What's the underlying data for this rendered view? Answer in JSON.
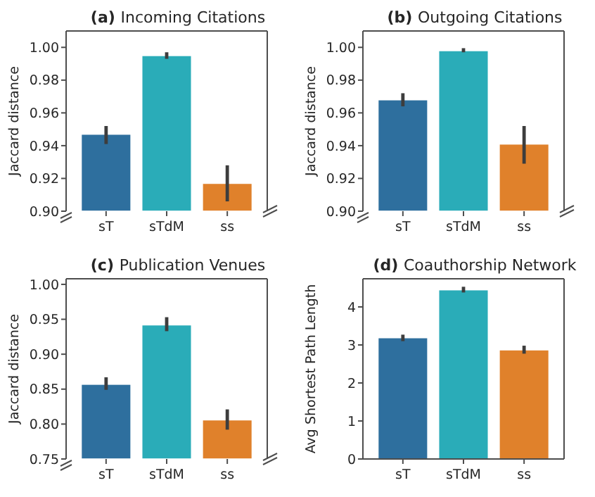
{
  "chart_data": [
    {
      "type": "bar",
      "title": "Incoming Citations",
      "annotations": [
        "(a)"
      ],
      "ylabel": "Jaccard distance",
      "categories": [
        "sT",
        "sTdM",
        "ss"
      ],
      "values": [
        0.947,
        0.995,
        0.917
      ],
      "colors": [
        "#2e6f9e",
        "#2aacb8",
        "#e0812b"
      ],
      "errors": [
        [
          0.941,
          0.952
        ],
        [
          0.993,
          0.997
        ],
        [
          0.906,
          0.928
        ]
      ],
      "ylim": [
        0.9,
        1.01
      ],
      "yticks": [
        {
          "value": 0.9,
          "label": "0.90"
        },
        0.92,
        0.94,
        0.96,
        0.98,
        {
          "value": 1.0,
          "label": "1.00"
        }
      ],
      "grid": false
    },
    {
      "type": "bar",
      "title": "Outgoing Citations",
      "annotations": [
        "(b)"
      ],
      "ylabel": "Jaccard distance",
      "categories": [
        "sT",
        "sTdM",
        "ss"
      ],
      "values": [
        0.968,
        0.998,
        0.941
      ],
      "colors": [
        "#2e6f9e",
        "#2aacb8",
        "#e0812b"
      ],
      "errors": [
        [
          0.964,
          0.972
        ],
        [
          0.997,
          0.9995
        ],
        [
          0.929,
          0.952
        ]
      ],
      "ylim": [
        0.9,
        1.01
      ],
      "yticks": [
        {
          "value": 0.9,
          "label": "0.90"
        },
        0.92,
        0.94,
        0.96,
        0.98,
        {
          "value": 1.0,
          "label": "1.00"
        }
      ],
      "grid": false
    },
    {
      "type": "bar",
      "title": "Publication Venues",
      "annotations": [
        "(c)"
      ],
      "ylabel": "Jaccard distance",
      "categories": [
        "sT",
        "sTdM",
        "ss"
      ],
      "values": [
        0.857,
        0.942,
        0.806
      ],
      "colors": [
        "#2e6f9e",
        "#2aacb8",
        "#e0812b"
      ],
      "errors": [
        [
          0.849,
          0.867
        ],
        [
          0.933,
          0.953
        ],
        [
          0.792,
          0.821
        ]
      ],
      "ylim": [
        0.75,
        1.008
      ],
      "yticks": [
        0.75,
        {
          "value": 0.8,
          "label": "0.80"
        },
        0.85,
        {
          "value": 0.9,
          "label": "0.90"
        },
        0.95,
        {
          "value": 1.0,
          "label": "1.00"
        }
      ],
      "grid": false
    },
    {
      "type": "bar",
      "title": "Coauthorship Network",
      "annotations": [
        "(d)"
      ],
      "ylabel": "Avg Shortest Path Length",
      "categories": [
        "sT",
        "sTdM",
        "ss"
      ],
      "values": [
        3.19,
        4.45,
        2.87
      ],
      "colors": [
        "#2e6f9e",
        "#2aacb8",
        "#e0812b"
      ],
      "errors": [
        [
          3.1,
          3.27
        ],
        [
          4.38,
          4.53
        ],
        [
          2.77,
          2.98
        ]
      ],
      "ylim": [
        0,
        4.74
      ],
      "yticks": [
        0,
        1,
        2,
        3,
        4
      ],
      "grid": false
    }
  ]
}
